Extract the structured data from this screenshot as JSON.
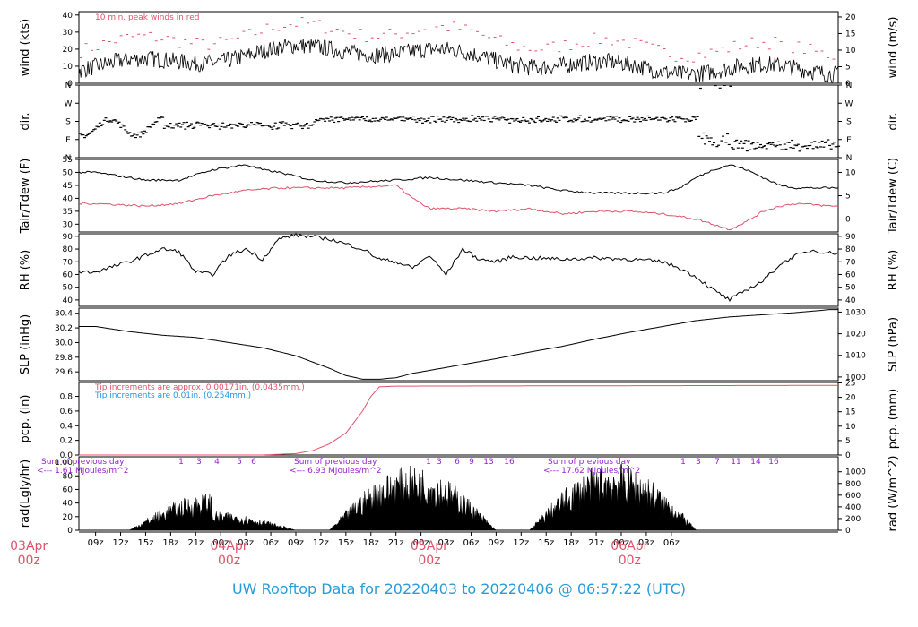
{
  "footer_title": "UW Rooftop Data for 20220403  to  20220406 @ 06:57:22  (UTC)",
  "colors": {
    "black": "#000000",
    "red": "#df536b",
    "blue": "#2297e6",
    "purple": "#9a1fd6",
    "title": "#2b9bd8"
  },
  "chart_data": [
    {
      "type": "line",
      "id": "wind",
      "ylabel": "wind (kts)",
      "ylabel_right": "wind (m/s)",
      "left_ticks": [
        0,
        10,
        20,
        30,
        40
      ],
      "right_ticks": [
        0,
        5,
        10,
        15,
        20
      ],
      "ylim": [
        0,
        42
      ],
      "annotation": "10 min. peak winds in red",
      "series": [
        {
          "name": "",
          "color": "#000000",
          "approx": true
        },
        {
          "name": "",
          "color": "#df536b",
          "approx": true
        }
      ]
    },
    {
      "type": "scatter",
      "id": "dir",
      "ylabel": "dir.",
      "ylabel_right": "dir.",
      "left_ticks": [
        "N",
        "E",
        "S",
        "W",
        "N"
      ],
      "right_ticks": [
        "N",
        "E",
        "S",
        "W",
        "N"
      ],
      "ylim": [
        0,
        360
      ]
    },
    {
      "type": "line",
      "id": "temp",
      "ylabel": "Tair/Tdew (F)",
      "ylabel_right": "Tair/Tdew (C)",
      "left_ticks": [
        30,
        35,
        40,
        45,
        50,
        55
      ],
      "right_ticks": [
        0,
        5,
        10
      ],
      "ylim": [
        27,
        55
      ],
      "series": [
        {
          "name": "",
          "color": "#000000",
          "x": [
            0,
            6,
            10,
            14,
            18,
            20,
            22,
            26,
            30,
            36,
            40,
            44,
            48,
            52,
            56,
            60,
            64,
            68,
            70,
            72,
            74,
            76,
            78,
            80,
            82,
            84,
            88
          ],
          "y": [
            50,
            47,
            47,
            51,
            53,
            51,
            50,
            47,
            46,
            47,
            48,
            47,
            46,
            45,
            43,
            42,
            42,
            42,
            44,
            48,
            51,
            53,
            51,
            48,
            45,
            44,
            44
          ]
        },
        {
          "name": "",
          "color": "#df536b",
          "x": [
            0,
            6,
            10,
            14,
            18,
            22,
            26,
            30,
            36,
            38,
            40,
            44,
            48,
            52,
            56,
            60,
            64,
            68,
            70,
            72,
            74,
            76,
            78,
            80,
            82,
            84,
            88
          ],
          "y": [
            38,
            37,
            38,
            41,
            43,
            44,
            44,
            44,
            45,
            40,
            36,
            36,
            35,
            36,
            34,
            35,
            35,
            34,
            33,
            32,
            30,
            28,
            31,
            35,
            37,
            38,
            37
          ]
        }
      ]
    },
    {
      "type": "line",
      "id": "rh",
      "ylabel": "RH (%)",
      "ylabel_right": "RH (%)",
      "left_ticks": [
        40,
        50,
        60,
        70,
        80,
        90
      ],
      "right_ticks": [
        40,
        50,
        60,
        70,
        80,
        90
      ],
      "ylim": [
        35,
        92
      ],
      "series": [
        {
          "name": "",
          "color": "#000000",
          "x": [
            0,
            4,
            8,
            10,
            12,
            14,
            16,
            18,
            20,
            22,
            24,
            28,
            30,
            32,
            34,
            36,
            38,
            40,
            42,
            44,
            46,
            48,
            50,
            52,
            56,
            60,
            64,
            68,
            70,
            72,
            74,
            76,
            78,
            80,
            82,
            84,
            86,
            88
          ],
          "y": [
            62,
            70,
            80,
            78,
            62,
            60,
            75,
            80,
            72,
            88,
            91,
            88,
            84,
            80,
            72,
            70,
            65,
            75,
            60,
            80,
            72,
            70,
            74,
            73,
            72,
            73,
            72,
            70,
            65,
            58,
            48,
            40,
            48,
            55,
            68,
            75,
            79,
            77
          ]
        }
      ]
    },
    {
      "type": "line",
      "id": "slp",
      "ylabel": "SLP (inHg)",
      "ylabel_right": "SLP (hPa)",
      "left_ticks": [
        29.6,
        29.8,
        30.0,
        30.2,
        30.4
      ],
      "right_ticks": [
        1000,
        1010,
        1020,
        1030
      ],
      "ylim": [
        29.48,
        30.47
      ],
      "series": [
        {
          "name": "",
          "color": "#000000",
          "x": [
            0,
            4,
            8,
            12,
            16,
            20,
            24,
            28,
            30,
            32,
            34,
            36,
            38,
            40,
            44,
            48,
            52,
            56,
            60,
            64,
            68,
            72,
            76,
            80,
            84,
            88
          ],
          "y": [
            30.22,
            30.15,
            30.1,
            30.07,
            30.0,
            29.93,
            29.82,
            29.65,
            29.55,
            29.5,
            29.5,
            29.52,
            29.58,
            29.62,
            29.7,
            29.78,
            29.87,
            29.95,
            30.05,
            30.14,
            30.22,
            30.3,
            30.35,
            30.38,
            30.41,
            30.45
          ]
        }
      ]
    },
    {
      "type": "line",
      "id": "pcp",
      "ylabel": "pcp. (in)",
      "ylabel_right": "pcp. (mm)",
      "left_ticks": [
        0.0,
        0.2,
        0.4,
        0.6,
        0.8
      ],
      "right_ticks": [
        0,
        5,
        10,
        15,
        20,
        25
      ],
      "ylim": [
        0,
        0.99
      ],
      "annotations": [
        "Tip increments are approx. 0.00171in. (0.0435mm.)",
        "Tip increments are 0.01in. (0.254mm.)"
      ],
      "series": [
        {
          "name": "",
          "color": "#df536b",
          "x": [
            0,
            20,
            22,
            24,
            26,
            28,
            30,
            32,
            33,
            34,
            36,
            88
          ],
          "y": [
            0,
            0,
            0.01,
            0.02,
            0.06,
            0.15,
            0.3,
            0.6,
            0.8,
            0.93,
            0.94,
            0.95
          ]
        }
      ]
    },
    {
      "type": "area",
      "id": "rad",
      "ylabel": "rad(Lgly/hr)",
      "ylabel_right": "rad (W/m^2)",
      "left_ticks": [
        0,
        20,
        40,
        60,
        80
      ],
      "right_ticks": [
        0,
        200,
        400,
        600,
        800,
        1000
      ],
      "ylim": [
        0,
        108
      ],
      "left_top_tick": "1.00",
      "days": [
        {
          "label1": "Sum of previous day",
          "label2": "<--- 1.61 MJoules/m^2",
          "hours": [
            "1",
            "3",
            "4",
            "5",
            "6"
          ]
        },
        {
          "label1": "Sum of previous day",
          "label2": "<--- 6.93 MJoules/m^2",
          "hours": [
            "1",
            "3",
            "6",
            "9",
            "13",
            "16"
          ]
        },
        {
          "label1": "Sum of previous day",
          "label2": "<--- 17.62 MJoules/m^2",
          "hours": [
            "1",
            "3",
            "7",
            "11",
            "14",
            "16"
          ]
        }
      ]
    }
  ],
  "x_axis": {
    "hour_labels": [
      "09z",
      "12z",
      "15z",
      "18z",
      "21z",
      "00z",
      "03z",
      "06z",
      "09z",
      "12z",
      "15z",
      "18z",
      "21z",
      "00z",
      "03z",
      "06z",
      "09z",
      "12z",
      "15z",
      "18z",
      "21z",
      "00z",
      "03z",
      "06z"
    ],
    "date_labels": [
      {
        "date": "03Apr",
        "hour": "00z",
        "x": -8
      },
      {
        "date": "04Apr",
        "hour": "00z",
        "x": 16
      },
      {
        "date": "05Apr",
        "hour": "00z",
        "x": 40
      },
      {
        "date": "06Apr",
        "hour": "00z",
        "x": 64
      }
    ]
  }
}
